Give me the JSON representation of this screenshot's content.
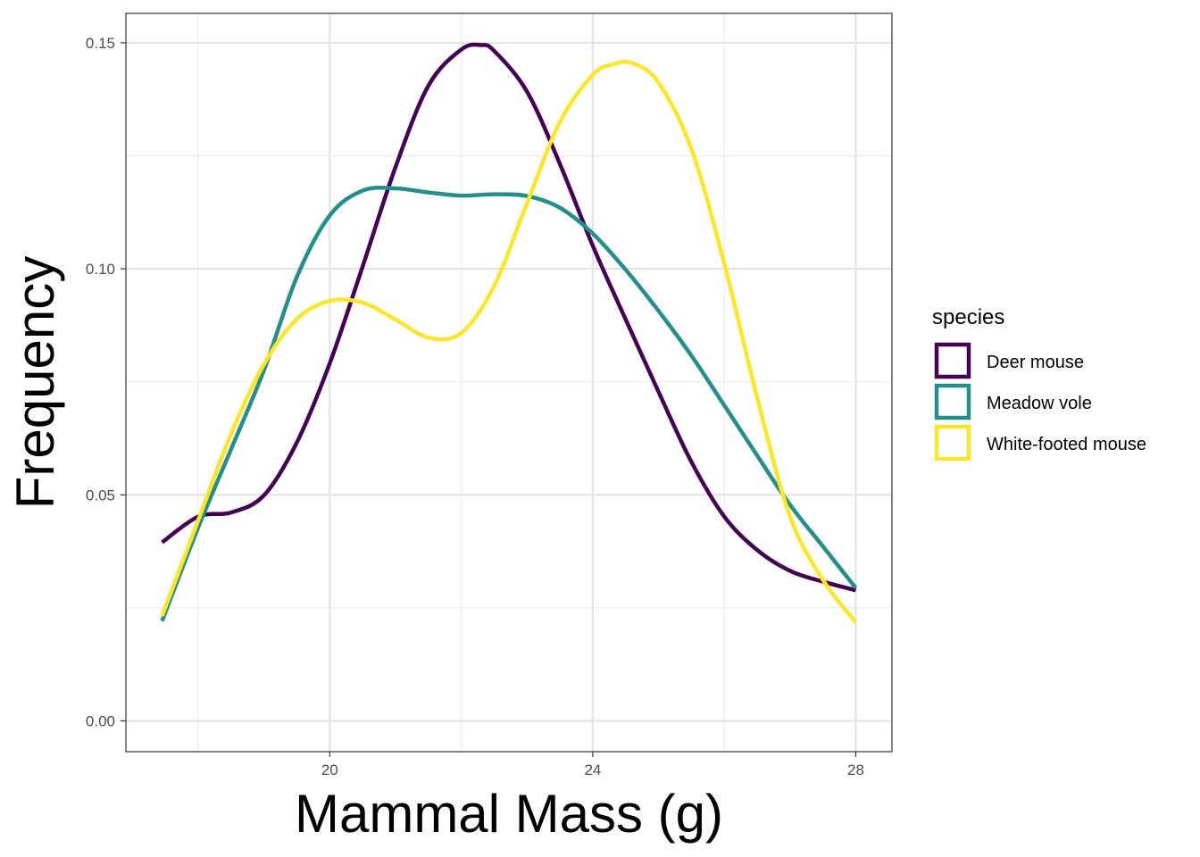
{
  "chart_data": {
    "type": "line",
    "title": "",
    "xlabel": "Mammal Mass (g)",
    "ylabel": "Frequency",
    "xlim": [
      16.9,
      28.55
    ],
    "ylim": [
      -0.0068,
      0.1565
    ],
    "x_ticks": [
      20,
      24,
      28
    ],
    "x_tick_labels": [
      "20",
      "24",
      "28"
    ],
    "y_ticks": [
      0.0,
      0.05,
      0.1,
      0.15
    ],
    "y_tick_labels": [
      "0.00",
      "0.05",
      "0.10",
      "0.15"
    ],
    "grid": true,
    "legend": {
      "title": "species",
      "placement": "right"
    },
    "series": [
      {
        "name": "Deer mouse",
        "color": "#440154",
        "x": [
          17.45,
          18.0,
          18.5,
          19.0,
          19.5,
          20.0,
          20.5,
          21.0,
          21.5,
          22.0,
          22.3,
          22.5,
          23.0,
          23.5,
          24.0,
          24.5,
          25.0,
          25.5,
          26.0,
          26.5,
          27.0,
          27.5,
          28.0
        ],
        "y": [
          0.0395,
          0.0452,
          0.0461,
          0.0499,
          0.0616,
          0.0791,
          0.1005,
          0.1225,
          0.1405,
          0.1485,
          0.1495,
          0.1482,
          0.1392,
          0.1232,
          0.1051,
          0.0888,
          0.0728,
          0.0573,
          0.0452,
          0.0378,
          0.0332,
          0.0308,
          0.0289
        ]
      },
      {
        "name": "Meadow vole",
        "color": "#21908C",
        "x": [
          17.45,
          18.0,
          18.5,
          19.0,
          19.5,
          20.0,
          20.5,
          21.0,
          21.5,
          22.0,
          22.5,
          23.0,
          23.5,
          24.0,
          24.5,
          25.0,
          25.5,
          26.0,
          26.5,
          27.0,
          27.5,
          28.0
        ],
        "y": [
          0.0221,
          0.0428,
          0.0601,
          0.0776,
          0.0982,
          0.1118,
          0.1173,
          0.1178,
          0.1169,
          0.1162,
          0.1165,
          0.1161,
          0.1135,
          0.1078,
          0.0998,
          0.0907,
          0.0808,
          0.0698,
          0.0587,
          0.0478,
          0.0386,
          0.0294
        ]
      },
      {
        "name": "White-footed mouse",
        "color": "#FDE725",
        "x": [
          17.45,
          18.0,
          18.5,
          19.0,
          19.5,
          20.0,
          20.5,
          21.0,
          21.5,
          22.0,
          22.5,
          23.0,
          23.5,
          24.0,
          24.3,
          24.6,
          25.0,
          25.5,
          26.0,
          26.5,
          27.0,
          27.5,
          28.0
        ],
        "y": [
          0.0232,
          0.0444,
          0.0635,
          0.0789,
          0.0889,
          0.0929,
          0.0925,
          0.0888,
          0.0848,
          0.0858,
          0.0962,
          0.1145,
          0.1325,
          0.1429,
          0.1452,
          0.1455,
          0.1412,
          0.1265,
          0.1012,
          0.0715,
          0.0452,
          0.0312,
          0.0218
        ]
      }
    ]
  }
}
